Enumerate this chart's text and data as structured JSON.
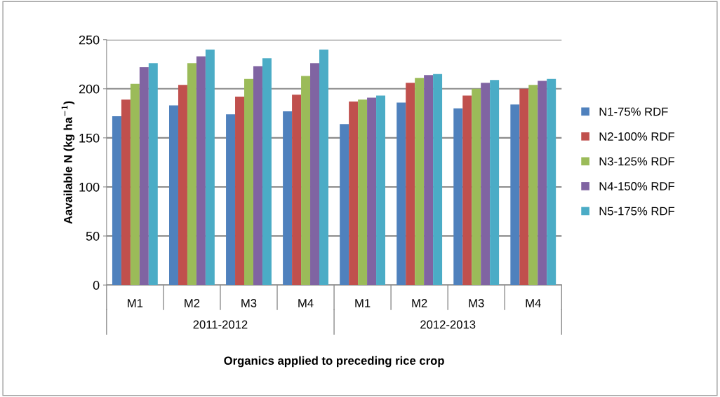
{
  "chart_data": {
    "type": "bar",
    "ylabel": "Aavailable N (kg ha$^{−1}$)",
    "xlabel": "Organics applied to preceding rice crop",
    "categories": [
      "M1",
      "M2",
      "M3",
      "M4",
      "M1",
      "M2",
      "M3",
      "M4"
    ],
    "annotations": [
      "2011-2012",
      "2012-2013"
    ],
    "series": [
      {
        "name": "N1-75% RDF",
        "color": "#4f81bd",
        "values": [
          172,
          183,
          174,
          177,
          164,
          186,
          180,
          184
        ]
      },
      {
        "name": "N2-100% RDF",
        "color": "#c0504d",
        "values": [
          189,
          204,
          192,
          194,
          187,
          206,
          193,
          200
        ]
      },
      {
        "name": "N3-125% RDF",
        "color": "#9bbb59",
        "values": [
          205,
          226,
          210,
          213,
          189,
          211,
          200,
          204
        ]
      },
      {
        "name": "N4-150% RDF",
        "color": "#8064a2",
        "values": [
          222,
          233,
          223,
          226,
          191,
          214,
          206,
          208
        ]
      },
      {
        "name": "N5-175% RDF",
        "color": "#4bacc6",
        "values": [
          226,
          240,
          231,
          240,
          193,
          215,
          209,
          210
        ]
      }
    ],
    "ylim": [
      0,
      250
    ],
    "yticks": [
      0,
      50,
      100,
      150,
      200,
      250
    ],
    "grid": "y",
    "legend": "right"
  }
}
